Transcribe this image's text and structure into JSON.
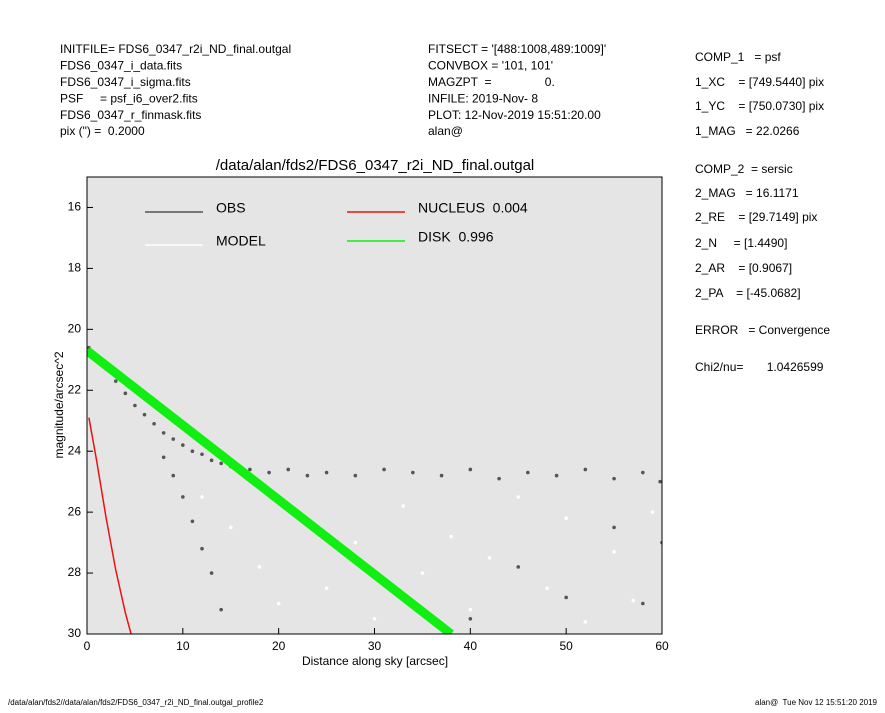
{
  "header": {
    "left": [
      "INITFILE= FDS6_0347_r2i_ND_final.outgal",
      "FDS6_0347_i_data.fits",
      "FDS6_0347_i_sigma.fits",
      "PSF     = psf_i6_over2.fits",
      "FDS6_0347_r_finmask.fits",
      "pix (\") =  0.2000"
    ],
    "middle": [
      "FITSECT = '[488:1008,489:1009]'",
      "CONVBOX = '101, 101'",
      "MAGZPT  =                0.",
      "INFILE: 2019-Nov- 8",
      "PLOT: 12-Nov-2019 15:51:20.00",
      "alan@"
    ]
  },
  "components": [
    "COMP_1   = psf",
    "1_XC    = [749.5440] pix",
    "1_YC    = [750.0730] pix",
    "1_MAG   = 22.0266",
    "COMP_2  = sersic",
    "2_MAG   = 16.1171",
    "2_RE    = [29.7149] pix",
    "2_N     = [1.4490]",
    "2_AR    = [0.9067]",
    "2_PA    = [-45.0682]",
    "ERROR   = Convergence",
    "Chi2/nu=       1.0426599"
  ],
  "footer": {
    "left": "/data/alan/fds2//data/alan/fds2/FDS6_0347_r2i_ND_final.outgal_profile2",
    "right": "alan@  Tue Nov 12 15:51:20 2019"
  },
  "chart_data": {
    "type": "scatter",
    "title": "/data/alan/fds2/FDS6_0347_r2i_ND_final.outgal",
    "x_label": "Distance along sky [arcsec]",
    "y_label": "magnitude/arcsec^2",
    "xlim": [
      0,
      60
    ],
    "ylim": [
      30,
      15
    ],
    "xticks": [
      0,
      10,
      20,
      30,
      40,
      50,
      60
    ],
    "yticks": [
      16,
      18,
      20,
      22,
      24,
      26,
      28,
      30
    ],
    "background": "#e5e5e5",
    "series": [
      {
        "name": "OBS",
        "color": "#555555",
        "mode": "points",
        "x": [
          0.2,
          1,
          2,
          3,
          4,
          5,
          6,
          7,
          8,
          9,
          10,
          11,
          12,
          13,
          14,
          15,
          17,
          19,
          21,
          23,
          25,
          28,
          31,
          34,
          37,
          40,
          43,
          46,
          49,
          52,
          55,
          58,
          59.8,
          8,
          9,
          10,
          11,
          12,
          13,
          14,
          40,
          45,
          50,
          55,
          58,
          60
        ],
        "values": [
          20.6,
          20.9,
          21.3,
          21.7,
          22.1,
          22.5,
          22.8,
          23.1,
          23.4,
          23.6,
          23.8,
          24.0,
          24.1,
          24.3,
          24.4,
          24.5,
          24.6,
          24.7,
          24.6,
          24.8,
          24.7,
          24.8,
          24.6,
          24.7,
          24.8,
          24.6,
          24.9,
          24.7,
          24.8,
          24.6,
          24.9,
          24.7,
          25.0,
          24.2,
          24.8,
          25.5,
          26.3,
          27.2,
          28.0,
          29.2,
          29.5,
          27.8,
          28.8,
          26.5,
          29.0,
          27.0
        ]
      },
      {
        "name": "MODEL",
        "color": "#ffffff",
        "mode": "points",
        "x": [
          12,
          15,
          18,
          20,
          22,
          25,
          28,
          30,
          33,
          35,
          38,
          40,
          42,
          45,
          48,
          50,
          52,
          55,
          57,
          59
        ],
        "values": [
          25.5,
          26.5,
          27.8,
          29.0,
          26.0,
          28.5,
          27.0,
          29.5,
          25.8,
          28.0,
          26.8,
          29.2,
          27.5,
          25.5,
          28.5,
          26.2,
          29.6,
          27.3,
          28.9,
          26.0
        ]
      },
      {
        "name": "NUCLEUS  0.004",
        "color": "#ee1111",
        "mode": "line",
        "x": [
          0.2,
          1,
          2,
          3,
          4,
          4.6
        ],
        "values": [
          22.9,
          24.3,
          26.2,
          27.9,
          29.3,
          30
        ]
      },
      {
        "name": "DISK  0.996",
        "color": "#11ee11",
        "mode": "band",
        "x": [
          0,
          38
        ],
        "values": [
          20.7,
          30
        ]
      }
    ]
  }
}
